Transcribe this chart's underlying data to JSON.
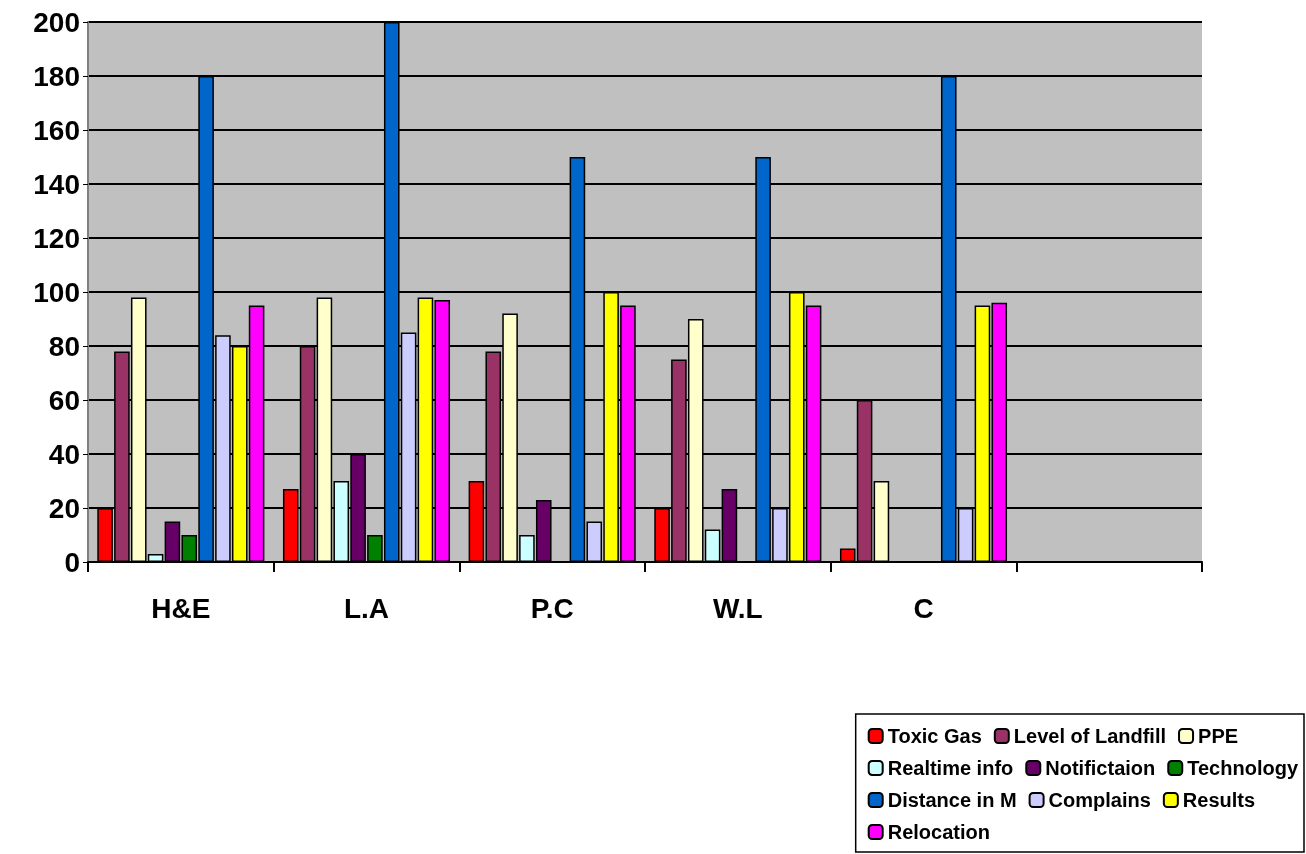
{
  "chart_data": {
    "type": "bar",
    "categories": [
      "H&E",
      "L.A",
      "P.C",
      "W.L",
      "C",
      null
    ],
    "series": [
      {
        "name": "Toxic Gas",
        "color": "#ff0000",
        "values": [
          20,
          27,
          30,
          20,
          5,
          null
        ]
      },
      {
        "name": "Level of Landfill",
        "color": "#993366",
        "values": [
          78,
          80,
          78,
          75,
          60,
          null
        ]
      },
      {
        "name": "PPE",
        "color": "#ffffcc",
        "values": [
          98,
          98,
          92,
          90,
          30,
          null
        ]
      },
      {
        "name": "Realtime info",
        "color": "#ccffff",
        "values": [
          3,
          30,
          10,
          12,
          0,
          null
        ]
      },
      {
        "name": "Notifictaion",
        "color": "#660066",
        "values": [
          15,
          40,
          23,
          27,
          0,
          null
        ]
      },
      {
        "name": "Technology",
        "color": "#008000",
        "values": [
          10,
          10,
          0,
          0,
          0,
          null
        ]
      },
      {
        "name": "Distance in M",
        "color": "#0066cc",
        "values": [
          180,
          200,
          150,
          150,
          180,
          null
        ]
      },
      {
        "name": "Complains",
        "color": "#ccccff",
        "values": [
          84,
          85,
          15,
          20,
          20,
          null
        ]
      },
      {
        "name": "Results",
        "color": "#ffff00",
        "values": [
          80,
          98,
          100,
          100,
          95,
          null
        ]
      },
      {
        "name": "Relocation",
        "color": "#ff00ff",
        "values": [
          95,
          97,
          95,
          95,
          96,
          null
        ]
      }
    ],
    "ylim": [
      0,
      200
    ],
    "yticks": [
      0,
      20,
      40,
      60,
      80,
      100,
      120,
      140,
      160,
      180,
      200
    ],
    "grid": "y",
    "legend": "bottom right"
  }
}
